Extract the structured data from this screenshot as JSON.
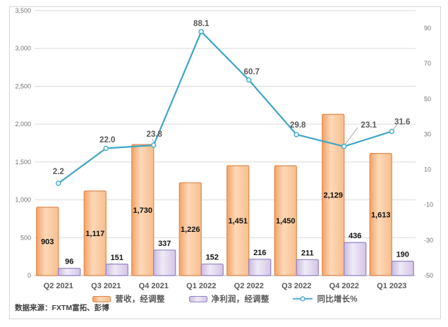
{
  "source_note": "数据来源：FXTM富拓、彭博",
  "colors": {
    "revenue_border": "#E0874B",
    "revenue_fill_stops": [
      "#F4A265",
      "#FCD9B9",
      "#F8BE8D"
    ],
    "profit_border": "#9283BF",
    "profit_fill_stops": [
      "#CBB9E0",
      "#EFEAF7",
      "#D5C5E6"
    ],
    "growth_line": "#3EA5C7",
    "marker_fill": "#E8F4FA",
    "grid": "#D9D9D9",
    "axis_line": "#BFBFBF",
    "tick_text": "#737373",
    "category_text": "#595959",
    "bar_label": "#111111",
    "line_label": "#595959",
    "leader": "#A0A0A0"
  },
  "chart_data": {
    "type": "combo (bar + line)",
    "categories": [
      "Q2 2021",
      "Q3 2021",
      "Q4 2021",
      "Q1 2022",
      "Q2 2022",
      "Q3 2022",
      "Q4 2022",
      "Q1 2023"
    ],
    "series": [
      {
        "name": "营收，经调整",
        "chart_type": "bar",
        "axis": "left",
        "values": [
          903,
          1117,
          1730,
          1226,
          1451,
          1450,
          2129,
          1613
        ],
        "labels": [
          "903",
          "1,117",
          "1,730",
          "1,226",
          "1,451",
          "1,450",
          "2,129",
          "1,613"
        ],
        "label_position": "inside-center"
      },
      {
        "name": "净利润，经调整",
        "chart_type": "bar",
        "axis": "left",
        "values": [
          96,
          151,
          337,
          152,
          216,
          211,
          436,
          190
        ],
        "labels": [
          "96",
          "151",
          "337",
          "152",
          "216",
          "211",
          "436",
          "190"
        ],
        "label_position": "outside-top"
      },
      {
        "name": "同比增长%",
        "chart_type": "line",
        "axis": "right",
        "values": [
          2.2,
          22.0,
          23.8,
          88.1,
          60.7,
          29.8,
          23.1,
          31.6
        ],
        "labels": [
          "2.2",
          "22.0",
          "23.8",
          "88.1",
          "60.7",
          "29.8",
          "23.1",
          "31.6"
        ],
        "label_position": "above"
      }
    ],
    "left_axis": {
      "min": 0,
      "max": 3500,
      "step": 500,
      "tick_labels": [
        "0",
        "500",
        "1,000",
        "1,500",
        "2,000",
        "2,500",
        "3,000",
        "3,500"
      ]
    },
    "right_axis": {
      "min": -50,
      "max": 100,
      "step": 20,
      "tick_labels": [
        "-50",
        "-30",
        "-10",
        "10",
        "30",
        "50",
        "70",
        "90"
      ]
    },
    "grid": true,
    "legend_position": "bottom"
  }
}
